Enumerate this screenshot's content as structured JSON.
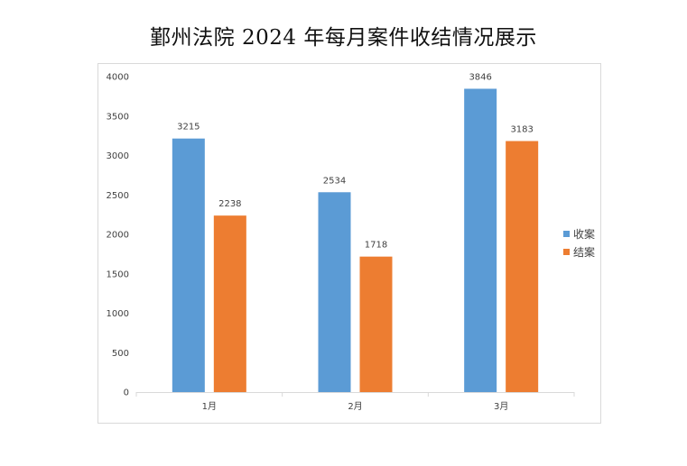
{
  "chart_data": {
    "type": "bar",
    "title": "鄞州法院 2024 年每月案件收结情况展示",
    "categories": [
      "1月",
      "2月",
      "3月"
    ],
    "series": [
      {
        "name": "收案",
        "values": [
          3215,
          2534,
          3846
        ],
        "color": "#5b9bd5"
      },
      {
        "name": "结案",
        "values": [
          2238,
          1718,
          3183
        ],
        "color": "#ed7d31"
      }
    ],
    "ylim": [
      0,
      4000
    ],
    "yticks": [
      0,
      500,
      1000,
      1500,
      2000,
      2500,
      3000,
      3500,
      4000
    ],
    "xlabel": "",
    "ylabel": "",
    "grid": false,
    "legend_position": "right",
    "data_labels": true
  }
}
